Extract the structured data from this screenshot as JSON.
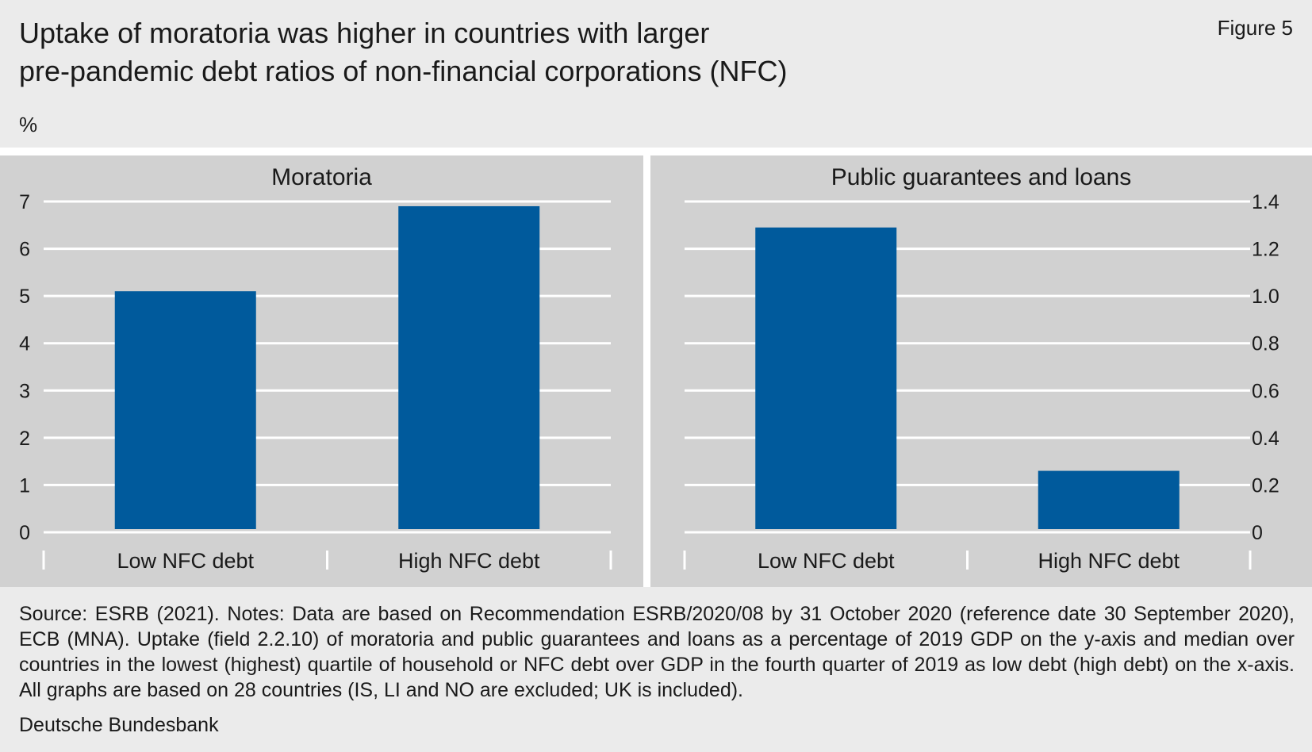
{
  "figure": {
    "title_lines": [
      "Uptake of moratoria was higher in countries with larger",
      "pre-pandemic debt ratios of non-financial corporations (NFC)"
    ],
    "label": "Figure 5",
    "unit": "%"
  },
  "chart_data": [
    {
      "type": "bar",
      "title": "Moratoria",
      "categories": [
        "Low NFC debt",
        "High NFC debt"
      ],
      "values": [
        5.1,
        6.9
      ],
      "ylim": [
        0,
        7
      ],
      "yticks": [
        0,
        1,
        2,
        3,
        4,
        5,
        6,
        7
      ],
      "ytick_labels": [
        "0",
        "1",
        "2",
        "3",
        "4",
        "5",
        "6",
        "7"
      ],
      "yaxis_side": "left",
      "xlabel": "",
      "ylabel": "",
      "grid": true,
      "bar_color": "#005a9c"
    },
    {
      "type": "bar",
      "title": "Public guarantees and loans",
      "categories": [
        "Low NFC debt",
        "High NFC debt"
      ],
      "values": [
        1.29,
        0.26
      ],
      "ylim": [
        0,
        1.4
      ],
      "yticks": [
        0,
        0.2,
        0.4,
        0.6,
        0.8,
        1.0,
        1.2,
        1.4
      ],
      "ytick_labels": [
        "0",
        "0.2",
        "0.4",
        "0.6",
        "0.8",
        "1.0",
        "1.2",
        "1.4"
      ],
      "yaxis_side": "right",
      "xlabel": "",
      "ylabel": "",
      "grid": true,
      "bar_color": "#005a9c"
    }
  ],
  "notes": "Source: ESRB (2021). Notes: Data are based on Recommendation ESRB/2020/08 by 31 October 2020 (reference date 30 September 2020), ECB (MNA). Uptake (field 2.2.10) of moratoria and public guarantees and loans as a percentage of 2019 GDP on the y-axis and median over countries in the lowest (highest) quartile of household or NFC debt over GDP in the fourth quarter of 2019 as low debt (high debt) on the x-axis. All graphs are based on 28 countries (IS, LI and NO are excluded; UK is included).",
  "publisher": "Deutsche Bundesbank",
  "colors": {
    "background": "#ebebeb",
    "panel": "#d1d1d1",
    "gridline": "#ffffff",
    "bar": "#005a9c"
  }
}
